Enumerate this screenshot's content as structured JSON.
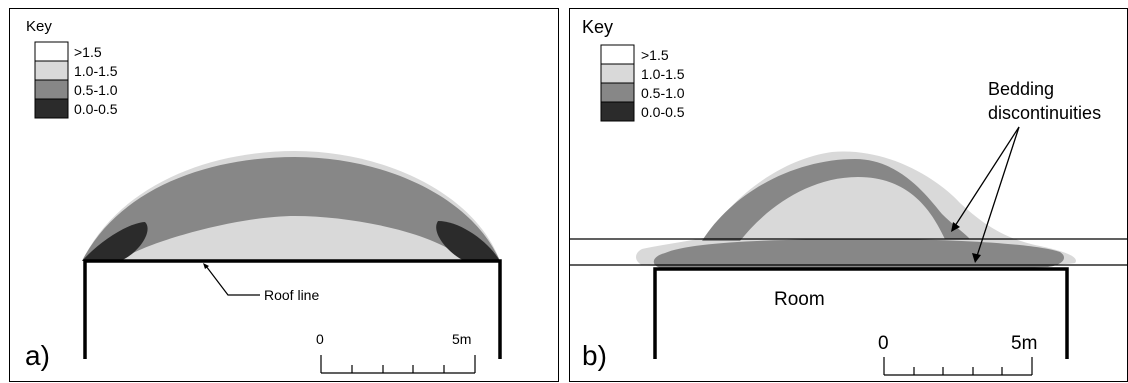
{
  "legend": {
    "title": "Key",
    "items": [
      {
        "label": ">1.5",
        "color": "#ffffff"
      },
      {
        "label": "1.0-1.5",
        "color": "#d9d9d9"
      },
      {
        "label": "0.5-1.0",
        "color": "#878787"
      },
      {
        "label": "0.0-0.5",
        "color": "#2b2b2b"
      }
    ]
  },
  "panel_a": {
    "letter": "a)",
    "roof_label": "Roof line",
    "scale": {
      "start": "0",
      "end": "5m"
    }
  },
  "panel_b": {
    "letter": "b)",
    "room_label": "Room",
    "bedding_label_line1": "Bedding",
    "bedding_label_line2": "discontinuities",
    "scale": {
      "start": "0",
      "end": "5m"
    }
  }
}
